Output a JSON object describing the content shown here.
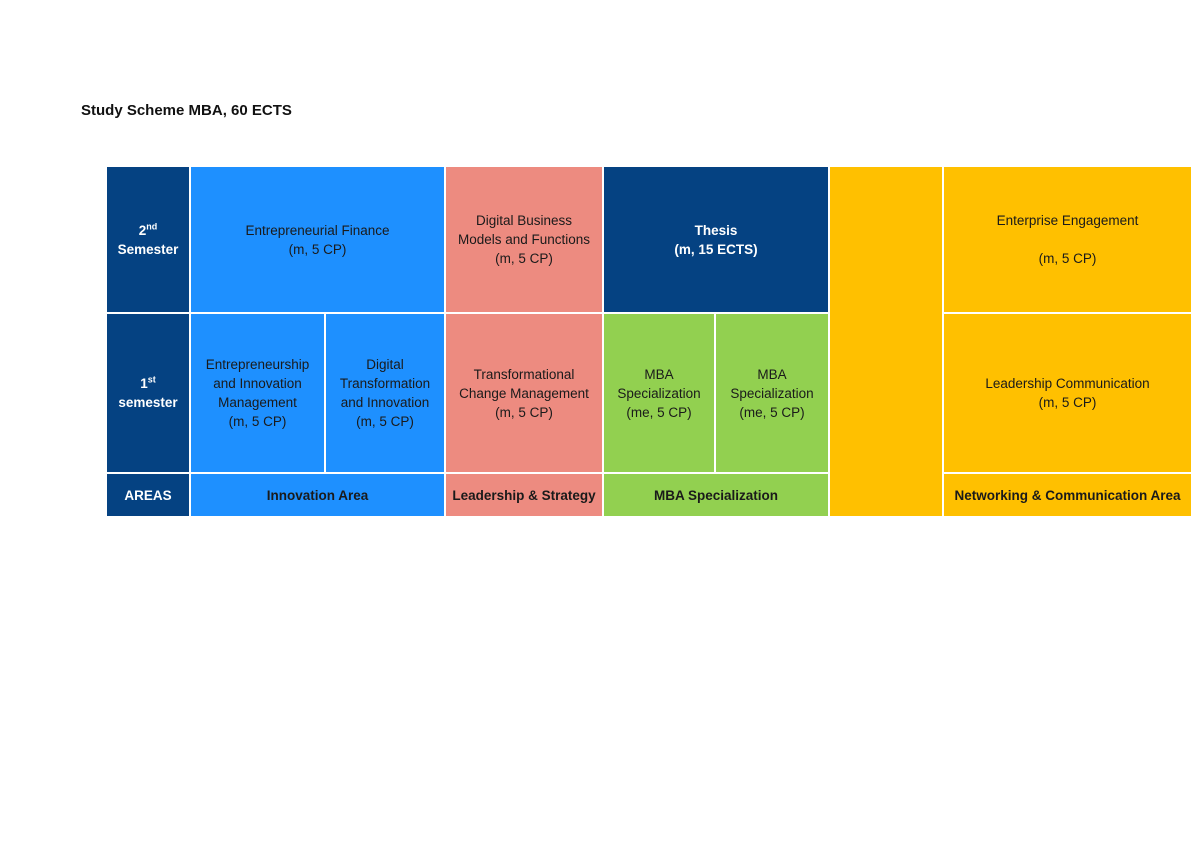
{
  "document": {
    "title": "Study Scheme MBA, 60 ECTS"
  },
  "rows": {
    "second": {
      "number": "2",
      "suffix": "nd",
      "label": "Semester"
    },
    "first": {
      "number": "1",
      "suffix": "st",
      "label": "semester"
    },
    "areas": {
      "label": "AREAS"
    }
  },
  "second_semester": {
    "entrepreneurial_finance": {
      "name": "Entrepreneurial Finance",
      "credits": "(m, 5 CP)"
    },
    "digital_business": {
      "line1": "Digital Business",
      "line2": "Models and Functions",
      "credits": "(m, 5 CP)"
    },
    "thesis": {
      "name": "Thesis",
      "credits": "(m, 15 ECTS)"
    },
    "enterprise_engagement": {
      "name": "Enterprise Engagement",
      "credits": "(m, 5 CP)"
    }
  },
  "first_semester": {
    "entrepreneurship": {
      "line1": "Entrepreneurship",
      "line2": "and Innovation",
      "line3": "Management",
      "credits": "(m, 5 CP)"
    },
    "digital_transformation": {
      "line1": "Digital",
      "line2": "Transformation",
      "line3": "and Innovation",
      "credits": "(m, 5 CP)"
    },
    "transformational_change": {
      "line1": "Transformational",
      "line2": "Change Management",
      "credits": "(m, 5 CP)"
    },
    "mba_spec_1": {
      "line1": "MBA",
      "line2": "Specialization",
      "credits": "(me, 5 CP)"
    },
    "mba_spec_2": {
      "line1": "MBA",
      "line2": "Specialization",
      "credits": "(me, 5 CP)"
    },
    "leadership_communication": {
      "name": "Leadership Communication",
      "credits": "(m, 5 CP)"
    }
  },
  "areas": {
    "innovation": "Innovation Area",
    "leadership": "Leadership & Strategy",
    "mba": "MBA Specialization",
    "networking": "Networking & Communication Area"
  },
  "colors": {
    "navy": "#054282",
    "blue": "#1e90ff",
    "salmon": "#ed8b80",
    "green": "#92d050",
    "gold": "#ffc000"
  }
}
